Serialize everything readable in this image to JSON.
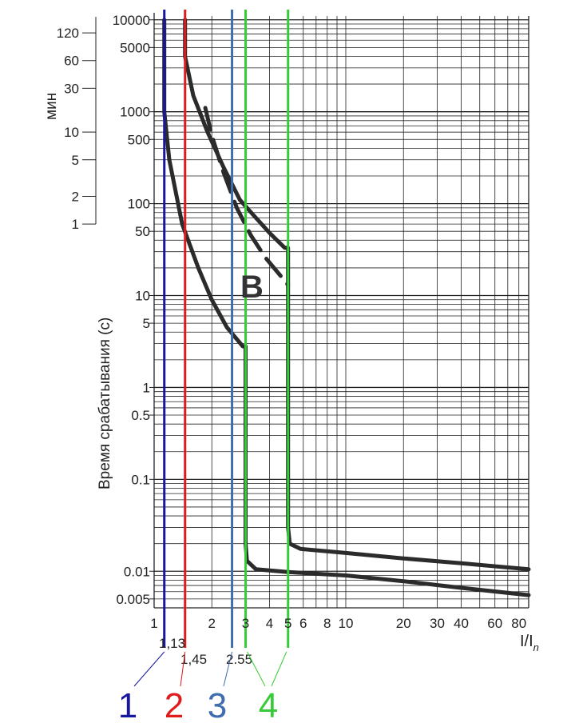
{
  "chart_data": {
    "type": "line",
    "x_scale": "log",
    "y_scale": "log",
    "xlim": [
      1,
      90
    ],
    "ylim": [
      0.004,
      11000
    ],
    "grid": true,
    "ylabel": "Время срабатывания (с)",
    "xlabel": "I/I",
    "xlabel_subscript": "n",
    "secondary_ylabel": "мин",
    "curve_label": "B",
    "x_ticks": [
      {
        "value": 1,
        "label": "1"
      },
      {
        "value": 2,
        "label": "2"
      },
      {
        "value": 3,
        "label": "3"
      },
      {
        "value": 4,
        "label": "4"
      },
      {
        "value": 5,
        "label": "5"
      },
      {
        "value": 6,
        "label": "6"
      },
      {
        "value": 8,
        "label": "8"
      },
      {
        "value": 10,
        "label": "10"
      },
      {
        "value": 20,
        "label": "20"
      },
      {
        "value": 30,
        "label": "30"
      },
      {
        "value": 40,
        "label": "40"
      },
      {
        "value": 60,
        "label": "60"
      },
      {
        "value": 80,
        "label": "80"
      }
    ],
    "y_ticks": [
      {
        "value": 10000,
        "label": "10000"
      },
      {
        "value": 5000,
        "label": "5000"
      },
      {
        "value": 1000,
        "label": "1000"
      },
      {
        "value": 500,
        "label": "500"
      },
      {
        "value": 100,
        "label": "100"
      },
      {
        "value": 50,
        "label": "50"
      },
      {
        "value": 10,
        "label": "10"
      },
      {
        "value": 5,
        "label": "5"
      },
      {
        "value": 1,
        "label": "1"
      },
      {
        "value": 0.5,
        "label": "0.5"
      },
      {
        "value": 0.1,
        "label": "0.1"
      },
      {
        "value": 0.01,
        "label": "0.01"
      },
      {
        "value": 0.005,
        "label": "0.005"
      }
    ],
    "minute_ticks": [
      {
        "value": 120,
        "label": "120"
      },
      {
        "value": 60,
        "label": "60"
      },
      {
        "value": 30,
        "label": "30"
      },
      {
        "value": 10,
        "label": "10"
      },
      {
        "value": 5,
        "label": "5"
      },
      {
        "value": 2,
        "label": "2"
      },
      {
        "value": 1,
        "label": "1"
      }
    ],
    "series": [
      {
        "style": "solid",
        "points": [
          [
            1.13,
            10000
          ],
          [
            1.13,
            1000
          ],
          [
            1.2,
            300
          ],
          [
            1.4,
            60
          ],
          [
            1.7,
            20
          ],
          [
            2.0,
            9
          ],
          [
            2.4,
            4.5
          ],
          [
            2.9,
            2.8
          ],
          [
            3.0,
            2.8
          ],
          [
            3.0,
            0.02
          ],
          [
            3.05,
            0.013
          ],
          [
            3.4,
            0.0105
          ],
          [
            5,
            0.0098
          ],
          [
            10,
            0.009
          ],
          [
            20,
            0.0078
          ],
          [
            40,
            0.0066
          ],
          [
            90,
            0.0055
          ]
        ]
      },
      {
        "style": "solid",
        "points": [
          [
            1.45,
            10000
          ],
          [
            1.45,
            4000
          ],
          [
            1.6,
            1500
          ],
          [
            1.9,
            600
          ],
          [
            2.3,
            250
          ],
          [
            2.8,
            110
          ],
          [
            3.3,
            75
          ],
          [
            4.0,
            48
          ],
          [
            4.8,
            33
          ],
          [
            5.0,
            33
          ],
          [
            5.0,
            0.03
          ],
          [
            5.1,
            0.02
          ],
          [
            5.8,
            0.0175
          ],
          [
            10,
            0.0158
          ],
          [
            20,
            0.0138
          ],
          [
            40,
            0.0122
          ],
          [
            90,
            0.0105
          ]
        ]
      },
      {
        "style": "dashed",
        "points": [
          [
            1.85,
            1100
          ],
          [
            2.0,
            550
          ],
          [
            2.3,
            220
          ],
          [
            2.7,
            90
          ],
          [
            3.2,
            45
          ],
          [
            3.8,
            26
          ],
          [
            4.5,
            17
          ],
          [
            5.0,
            13
          ]
        ]
      }
    ],
    "markers": [
      {
        "x": 1.13,
        "label": "1,13",
        "number": "1",
        "color": "#1616a0"
      },
      {
        "x": 1.45,
        "label": "1,45",
        "number": "2",
        "color": "#e01b1b"
      },
      {
        "x": 2.55,
        "label": "2.55",
        "number": "3",
        "color": "#3f6cae"
      },
      {
        "x": 3.0,
        "label": "",
        "number": "4",
        "color": "#37cc37"
      },
      {
        "x": 5.0,
        "label": "",
        "number": "",
        "color": "#37cc37"
      }
    ]
  }
}
